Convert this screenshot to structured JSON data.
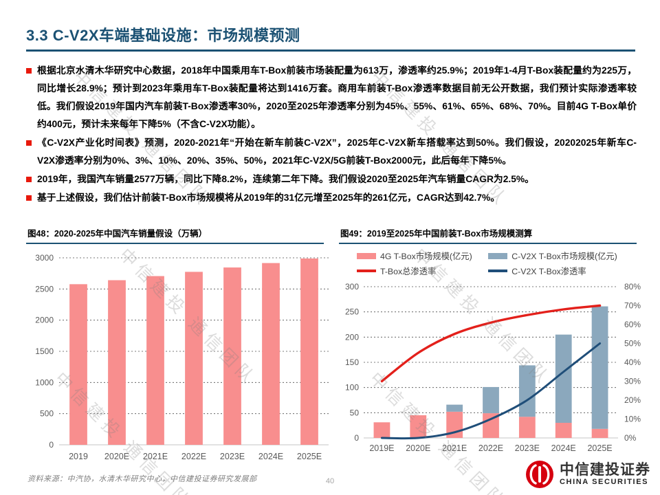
{
  "header": {
    "title": "3.3 C-V2X车端基础设施：市场规模预测"
  },
  "bullets": [
    "根据北京水清木华研究中心数据，2018年中国乘用车T-Box前装市场装配量为613万，渗透率约25.9%；2019年1-4月T-Box装配量约为225万，同比增长28.9%；预计到2023年乘用车T-Box装配量将达到1416万套。商用车前装T-Box渗透率数据目前无公开数据，我们预计实际渗透率较低。我们假设2019年国内汽车前装T-Box渗透率30%，2020至2025年渗透率分别为45%、55%、61%、65%、68%、70%。目前4G T-Box单价约400元，预计未来每年下降5%（不含C-V2X功能）。",
    "《C-V2X产业化时间表》预测，2020-2021年“开始在新车前装C-V2X”，2025年C-V2X新车搭载率达到50%。我们假设，20202025年新车C-V2X渗透率分别为0%、3%、10%、20%、35%、50%，2021年C-V2X/5G前装T-Box2000元，此后每年下降5%。",
    "2019年，我国汽车销量2577万辆，同比下降8.2%，连续第二年下降。我们假设2020至2025年汽车销量CAGR为2.5%。",
    "基于上述假设，我们估计前装T-Box市场规模将从2019年的31亿元增至2025年的261亿元，CAGR达到42.7%。"
  ],
  "watermark": {
    "text": "中信建投 通信团队"
  },
  "figures": [
    {
      "caption": "图48：2020-2025年中国汽车销量假设（万辆）"
    },
    {
      "caption": "图49：2019至2025年中国前装T-Box市场规模测算"
    }
  ],
  "chart_data": [
    {
      "type": "bar",
      "title": "2020-2025年中国汽车销量假设（万辆）",
      "categories": [
        "2019",
        "2020E",
        "2021E",
        "2022E",
        "2023E",
        "2024E",
        "2025E"
      ],
      "values": [
        2577,
        2641,
        2707,
        2775,
        2845,
        2916,
        2989
      ],
      "bar_color": "#F88E8E",
      "ylim": [
        0,
        3000
      ],
      "yticks": [
        0,
        500,
        1000,
        1500,
        2000,
        2500,
        3000
      ],
      "grid": "dashed horizontal",
      "xlabel": "",
      "ylabel": ""
    },
    {
      "type": "combo",
      "title": "2019至2025年中国前装T-Box市场规模测算",
      "categories": [
        "2019E",
        "2020E",
        "2021E",
        "2022E",
        "2023E",
        "2024E",
        "2025E"
      ],
      "stacked": true,
      "bar_series": [
        {
          "name": "4G T-Box市场规模(亿元)",
          "color": "#F88E8E",
          "values": [
            31,
            45,
            52,
            49,
            42,
            30,
            18
          ]
        },
        {
          "name": "C-V2X T-Box市场规模(亿元)",
          "color": "#8BA8BD",
          "values": [
            0,
            0,
            14,
            52,
            102,
            175,
            243
          ]
        }
      ],
      "line_series": [
        {
          "name": "T-Box总渗透率",
          "color": "#E3201B",
          "values_pct": [
            30,
            45,
            55,
            61,
            65,
            68,
            70
          ]
        },
        {
          "name": "C-V2X T-Box渗透率",
          "color": "#1F4E79",
          "values_pct": [
            0,
            0,
            3,
            10,
            20,
            35,
            50
          ]
        }
      ],
      "ylim_left": [
        0,
        300
      ],
      "yticks_left": [
        0,
        50,
        100,
        150,
        200,
        250,
        300
      ],
      "ylim_right_pct": [
        0,
        80
      ],
      "yticks_right": [
        "0%",
        "10%",
        "20%",
        "30%",
        "40%",
        "50%",
        "60%",
        "70%",
        "80%"
      ],
      "legend_position": "top",
      "grid": "dashed horizontal"
    }
  ],
  "footer": {
    "source": "资料来源：中汽协，水清木华研究中心，中信建投证券研究发展部",
    "page_number": "40",
    "logo_cn": "中信建投证券",
    "logo_en": "CHINA SECURITIES"
  },
  "colors": {
    "title_blue": "#1B5173",
    "bullet_red": "#E8190C",
    "bar_salmon": "#F88E8E",
    "bar_steelblue": "#8BA8BD",
    "line_red": "#E3201B",
    "line_navy": "#1F4E79",
    "logo_red": "#D6000F"
  }
}
